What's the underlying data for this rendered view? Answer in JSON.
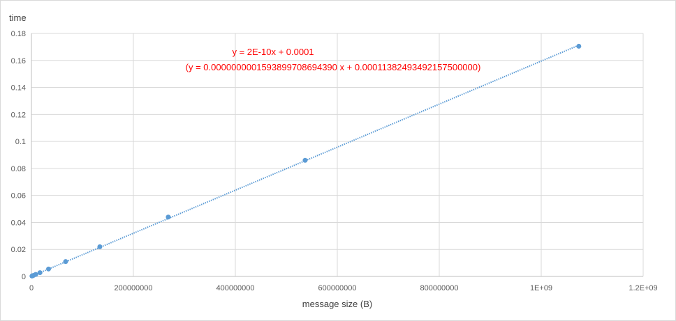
{
  "chart_data": {
    "type": "scatter",
    "title": "",
    "ylabel": "time",
    "xlabel": "message size (B)",
    "xlim": [
      0,
      1200000000
    ],
    "ylim": [
      0,
      0.18
    ],
    "grid": true,
    "legend": "none",
    "x_tick_labels": [
      "0",
      "200000000",
      "400000000",
      "600000000",
      "800000000",
      "1E+09",
      "1.2E+09"
    ],
    "x_ticks": [
      0,
      200000000,
      400000000,
      600000000,
      800000000,
      1000000000,
      1200000000
    ],
    "y_tick_labels": [
      "0",
      "0.02",
      "0.04",
      "0.06",
      "0.08",
      "0.1",
      "0.12",
      "0.14",
      "0.16",
      "0.18"
    ],
    "y_ticks": [
      0,
      0.02,
      0.04,
      0.06,
      0.08,
      0.1,
      0.12,
      0.14,
      0.16,
      0.18
    ],
    "series": [
      {
        "color": "#5b9bd5",
        "x": [
          1048576,
          2097152,
          4194304,
          8388608,
          16777216,
          33554432,
          67108864,
          134217728,
          268435456,
          536870912,
          1073741824
        ],
        "y": [
          0.0003,
          0.0005,
          0.0008,
          0.0015,
          0.0028,
          0.0055,
          0.011,
          0.022,
          0.044,
          0.086,
          0.1705
        ]
      }
    ],
    "trendline": {
      "slope": 1.5938997086943897e-10,
      "intercept": 0.000113824934921575,
      "color": "#5b9bd5",
      "style": "dotted"
    },
    "annotations": {
      "equation": "y = 2E-10x + 0.0001",
      "equation_precise": "(y = 0.00000000015938997086943​90  x + 0.00011382493492157500000)"
    }
  }
}
